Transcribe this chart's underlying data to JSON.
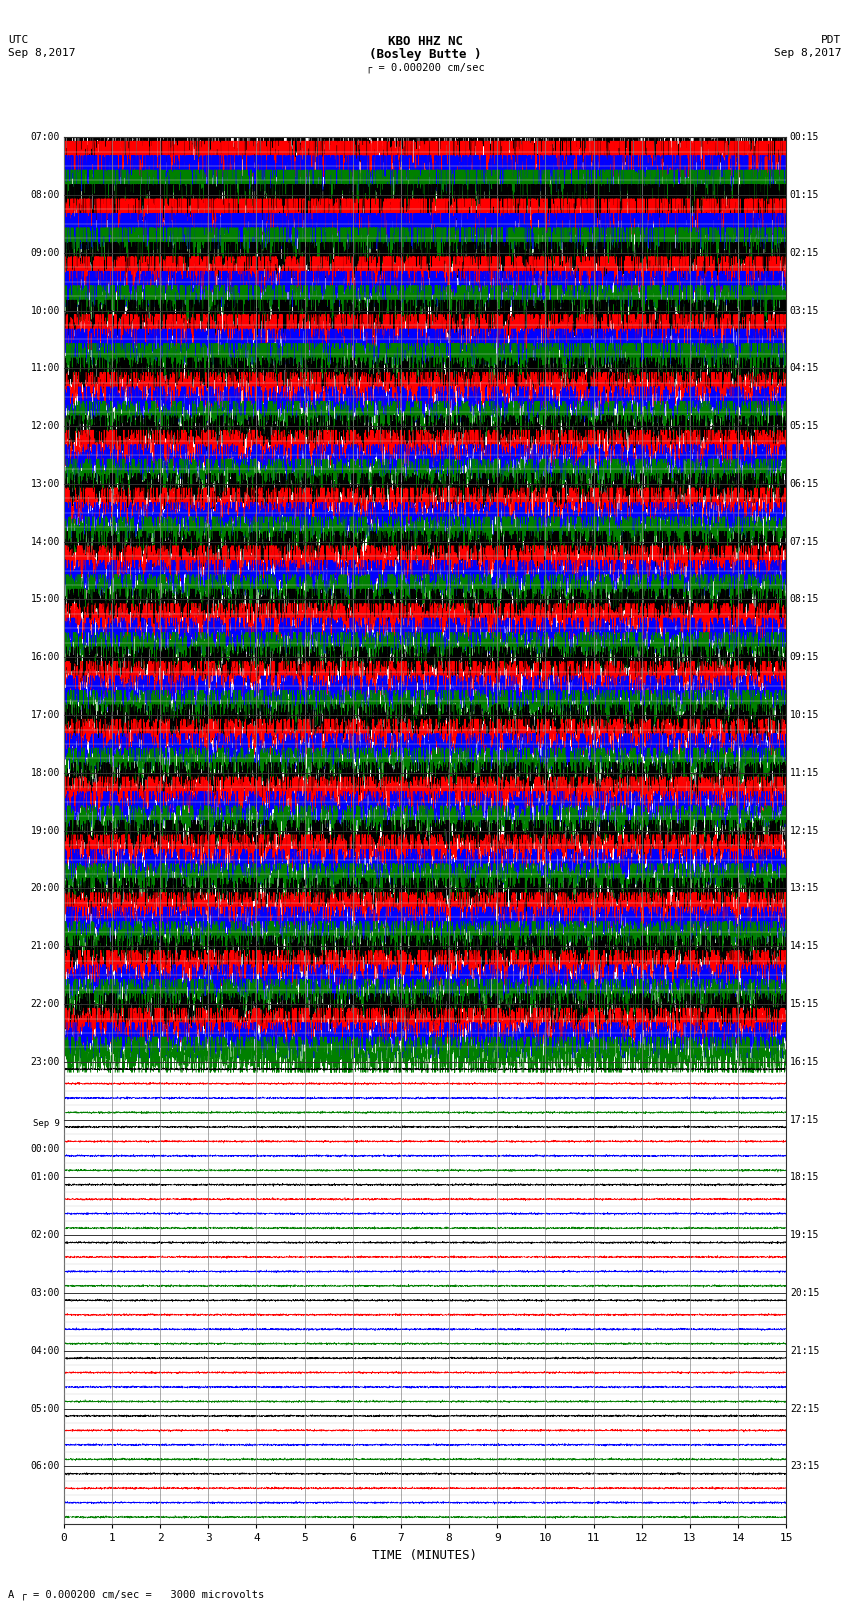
{
  "title_line1": "KBO HHZ NC",
  "title_line2": "(Bosley Butte )",
  "scale_text": "= 0.000200 cm/sec",
  "left_header": "UTC",
  "left_subheader": "Sep 8,2017",
  "right_header": "PDT",
  "right_subheader": "Sep 8,2017",
  "xlabel": "TIME (MINUTES)",
  "footer_text": "= 0.000200 cm/sec =   3000 microvolts",
  "footer_label": "A",
  "bg_color": "#ffffff",
  "grid_color": "#999999",
  "trace_colors": [
    "black",
    "red",
    "blue",
    "green"
  ],
  "time_minutes": 15,
  "rows_utc_start": [
    "07:00",
    "08:00",
    "09:00",
    "10:00",
    "11:00",
    "12:00",
    "13:00",
    "14:00",
    "15:00",
    "16:00",
    "17:00",
    "18:00",
    "19:00",
    "20:00",
    "21:00",
    "22:00",
    "23:00",
    "Sep 9\n00:00",
    "01:00",
    "02:00",
    "03:00",
    "04:00",
    "05:00",
    "06:00"
  ],
  "rows_pdt_start": [
    "00:15",
    "01:15",
    "02:15",
    "03:15",
    "04:15",
    "05:15",
    "06:15",
    "07:15",
    "08:15",
    "09:15",
    "10:15",
    "11:15",
    "12:15",
    "13:15",
    "14:15",
    "15:15",
    "16:15",
    "17:15",
    "18:15",
    "19:15",
    "20:15",
    "21:15",
    "22:15",
    "23:15"
  ],
  "n_active_rows": 16,
  "figwidth": 8.5,
  "figheight": 16.13,
  "dpi": 100
}
